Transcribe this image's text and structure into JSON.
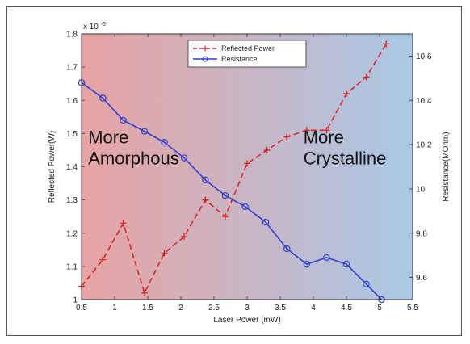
{
  "chart_data": {
    "type": "line",
    "xlabel": "Laser Power (mW)",
    "ylabel": "Reflected Power(W)",
    "y2label": "Resistance(MOhm)",
    "y_exponent": "x 10",
    "y_exponent_power": "-6",
    "xlim": [
      0.5,
      5.5
    ],
    "ylim": [
      1.0,
      1.8
    ],
    "y2lim": [
      9.5,
      10.7
    ],
    "x_ticks": [
      "0.5",
      "1",
      "1.5",
      "2",
      "2.5",
      "3",
      "3.5",
      "4",
      "4.5",
      "5",
      "5.5"
    ],
    "y_ticks": [
      "1",
      "1.1",
      "1.2",
      "1.3",
      "1.4",
      "1.5",
      "1.6",
      "1.7",
      "1.8"
    ],
    "y2_ticks": [
      "9.6",
      "9.8",
      "10",
      "10.2",
      "10.4",
      "10.6"
    ],
    "series": [
      {
        "name": "Reflected Power",
        "axis": "left",
        "color": "#d62728",
        "style": "dashed",
        "marker": "plus",
        "x": [
          0.5,
          0.82,
          1.13,
          1.45,
          1.75,
          2.05,
          2.37,
          2.67,
          3.0,
          3.3,
          3.6,
          3.9,
          4.2,
          4.5,
          4.8,
          5.1
        ],
        "y": [
          1.04,
          1.12,
          1.23,
          1.02,
          1.14,
          1.19,
          1.3,
          1.25,
          1.41,
          1.45,
          1.49,
          1.51,
          1.51,
          1.62,
          1.67,
          1.77
        ]
      },
      {
        "name": "Resistance",
        "axis": "right",
        "color": "#2f3fd0",
        "style": "solid",
        "marker": "circle",
        "x": [
          0.5,
          0.82,
          1.13,
          1.45,
          1.75,
          2.05,
          2.37,
          2.67,
          2.97,
          3.28,
          3.6,
          3.9,
          4.2,
          4.5,
          4.8,
          5.03
        ],
        "y": [
          10.48,
          10.41,
          10.31,
          10.26,
          10.21,
          10.14,
          10.04,
          9.97,
          9.92,
          9.85,
          9.73,
          9.66,
          9.69,
          9.66,
          9.57,
          9.5
        ]
      }
    ],
    "legend_position": "top-center",
    "background_gradient": {
      "left_color": "#e8a3a3",
      "right_color": "#a9c8e6"
    },
    "annotations": [
      {
        "lines": [
          "More",
          "Amorphous"
        ],
        "x": 0.6,
        "y": 1.47
      },
      {
        "lines": [
          "More",
          "Crystalline"
        ],
        "x": 3.85,
        "y": 1.47
      }
    ],
    "grid": false
  }
}
